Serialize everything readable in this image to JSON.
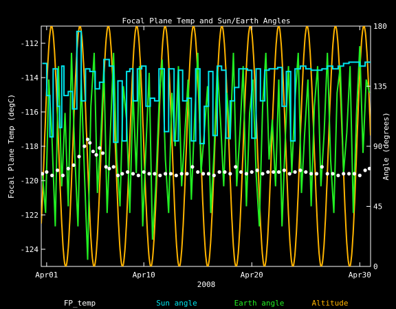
{
  "chart_data": {
    "type": "line",
    "title": "Focal Plane Temp and Sun/Earth Angles",
    "xlabel": "2008",
    "ylabel_left": "Focal Plane Temp (degC)",
    "ylabel_right": "Angle (degrees)",
    "x_unit": "day of month (April 2008)",
    "xlim": [
      0.5,
      31.0
    ],
    "ylim_left": [
      -125.0,
      -111.0
    ],
    "ylim_right": [
      0,
      180
    ],
    "x_ticks": [
      {
        "x": 1,
        "label": "Apr01"
      },
      {
        "x": 10,
        "label": "Apr10"
      },
      {
        "x": 20,
        "label": "Apr20"
      },
      {
        "x": 30,
        "label": "Apr30"
      }
    ],
    "y_ticks_left": [
      -124,
      -122,
      -120,
      -118,
      -116,
      -114,
      -112
    ],
    "y_ticks_right": [
      0,
      45,
      90,
      135,
      180
    ],
    "legend_placement": "bottom",
    "colors": {
      "background": "#000000",
      "axes": "#ffffff",
      "fp_temp": "#ffffff",
      "sun_angle": "#00e5ee",
      "earth_angle": "#22ee22",
      "altitude": "#ffb400"
    },
    "series": [
      {
        "name": "FP_temp",
        "axis": "left",
        "style": "points",
        "x": [
          0.6,
          1.0,
          1.5,
          2.0,
          2.5,
          3.0,
          3.5,
          4.0,
          4.5,
          4.8,
          5.0,
          5.3,
          5.6,
          5.9,
          6.2,
          6.5,
          6.8,
          7.2,
          7.6,
          8.0,
          8.5,
          9.0,
          9.5,
          10.0,
          10.5,
          11.0,
          11.5,
          12.0,
          12.5,
          13.0,
          13.5,
          14.0,
          14.5,
          15.0,
          15.5,
          16.0,
          16.5,
          17.0,
          17.5,
          18.0,
          18.5,
          19.0,
          19.5,
          20.0,
          20.5,
          21.0,
          21.5,
          22.0,
          22.5,
          23.0,
          23.5,
          24.0,
          24.5,
          25.0,
          25.5,
          26.0,
          26.5,
          27.0,
          27.5,
          28.0,
          28.5,
          29.0,
          29.5,
          30.0,
          30.5,
          30.9
        ],
        "y": [
          -119.6,
          -119.5,
          -119.7,
          -119.4,
          -119.7,
          -119.3,
          -119.1,
          -118.6,
          -118.0,
          -117.6,
          -117.8,
          -118.3,
          -118.5,
          -118.1,
          -118.4,
          -119.2,
          -119.3,
          -119.2,
          -119.7,
          -119.6,
          -119.5,
          -119.6,
          -119.7,
          -119.5,
          -119.6,
          -119.6,
          -119.7,
          -119.6,
          -119.6,
          -119.7,
          -119.6,
          -119.6,
          -119.2,
          -119.5,
          -119.6,
          -119.6,
          -119.7,
          -119.5,
          -119.5,
          -119.6,
          -119.2,
          -119.5,
          -119.6,
          -119.5,
          -119.4,
          -119.6,
          -119.5,
          -119.5,
          -119.5,
          -119.4,
          -119.6,
          -119.5,
          -119.4,
          -119.5,
          -119.6,
          -119.6,
          -119.2,
          -119.6,
          -119.6,
          -119.7,
          -119.6,
          -119.6,
          -119.6,
          -119.7,
          -119.4,
          -119.3
        ]
      },
      {
        "name": "Sun angle",
        "axis": "right",
        "style": "step",
        "x": [
          0.6,
          1.0,
          1.3,
          1.6,
          2.0,
          2.2,
          2.4,
          2.6,
          3.0,
          3.4,
          3.8,
          4.2,
          4.6,
          5.0,
          5.5,
          5.9,
          6.3,
          6.8,
          7.2,
          7.6,
          8.0,
          8.4,
          8.7,
          9.0,
          9.4,
          9.8,
          10.2,
          10.6,
          11.0,
          11.4,
          11.9,
          12.3,
          12.8,
          13.2,
          13.6,
          14.0,
          14.4,
          14.8,
          15.2,
          15.6,
          16.0,
          16.4,
          16.8,
          17.2,
          17.6,
          18.0,
          18.4,
          18.8,
          19.2,
          19.6,
          20.0,
          20.4,
          20.8,
          21.2,
          21.6,
          22.0,
          22.4,
          22.8,
          23.2,
          23.6,
          24.0,
          24.5,
          25.0,
          25.5,
          26.0,
          26.5,
          27.0,
          27.5,
          28.0,
          28.5,
          29.0,
          29.5,
          30.0,
          30.5,
          30.9
        ],
        "y": [
          152,
          128,
          97,
          148,
          120,
          104,
          150,
          128,
          131,
          118,
          176,
          124,
          148,
          146,
          133,
          138,
          155,
          150,
          93,
          139,
          94,
          146,
          148,
          124,
          148,
          150,
          120,
          126,
          124,
          148,
          101,
          148,
          94,
          147,
          124,
          126,
          94,
          148,
          92,
          120,
          146,
          98,
          150,
          147,
          96,
          124,
          134,
          148,
          148,
          147,
          96,
          148,
          124,
          147,
          148,
          148,
          149,
          120,
          146,
          94,
          148,
          150,
          148,
          147,
          147,
          148,
          150,
          148,
          150,
          152,
          153,
          153,
          150,
          153,
          153
        ]
      },
      {
        "name": "Earth angle",
        "axis": "right",
        "style": "line",
        "x": [
          0.6,
          0.9,
          1.2,
          1.5,
          1.8,
          2.1,
          2.4,
          2.7,
          3.0,
          3.3,
          3.6,
          3.9,
          4.2,
          4.5,
          4.8,
          5.1,
          5.4,
          5.7,
          6.0,
          6.3,
          6.6,
          6.9,
          7.2,
          7.5,
          7.8,
          8.1,
          8.4,
          8.7,
          9.0,
          9.3,
          9.6,
          9.9,
          10.2,
          10.5,
          10.8,
          11.1,
          11.4,
          11.7,
          12.0,
          12.3,
          12.6,
          12.9,
          13.2,
          13.5,
          13.8,
          14.1,
          14.4,
          14.7,
          15.0,
          15.3,
          15.6,
          15.9,
          16.2,
          16.5,
          16.8,
          17.1,
          17.4,
          17.7,
          18.0,
          18.3,
          18.6,
          18.9,
          19.2,
          19.5,
          19.8,
          20.1,
          20.4,
          20.7,
          21.0,
          21.3,
          21.6,
          21.9,
          22.2,
          22.5,
          22.8,
          23.1,
          23.4,
          23.7,
          24.0,
          24.3,
          24.6,
          24.9,
          25.2,
          25.5,
          25.8,
          26.1,
          26.4,
          26.7,
          27.0,
          27.3,
          27.6,
          27.9,
          28.2,
          28.5,
          28.8,
          29.1,
          29.4,
          29.7,
          30.0,
          30.3,
          30.6,
          30.9
        ],
        "y": [
          70,
          40,
          140,
          95,
          30,
          150,
          60,
          115,
          45,
          160,
          85,
          30,
          140,
          70,
          5,
          120,
          160,
          55,
          95,
          150,
          40,
          100,
          160,
          80,
          45,
          135,
          110,
          40,
          130,
          70,
          150,
          30,
          90,
          145,
          20,
          60,
          120,
          155,
          80,
          40,
          130,
          90,
          150,
          60,
          100,
          140,
          50,
          110,
          160,
          70,
          100,
          135,
          40,
          85,
          150,
          110,
          60,
          130,
          95,
          160,
          60,
          100,
          150,
          45,
          115,
          140,
          70,
          30,
          120,
          160,
          80,
          110,
          60,
          140,
          30,
          95,
          150,
          70,
          125,
          160,
          55,
          100,
          140,
          45,
          120,
          150,
          60,
          100,
          160,
          80,
          40,
          130,
          150,
          70,
          100,
          150,
          40,
          115,
          165,
          85,
          140,
          130
        ]
      },
      {
        "name": "Altitude",
        "axis": "right",
        "style": "periodic",
        "period_days": 2.63,
        "phase_day_of_max": 1.45,
        "min": 0,
        "max": 180
      }
    ]
  }
}
